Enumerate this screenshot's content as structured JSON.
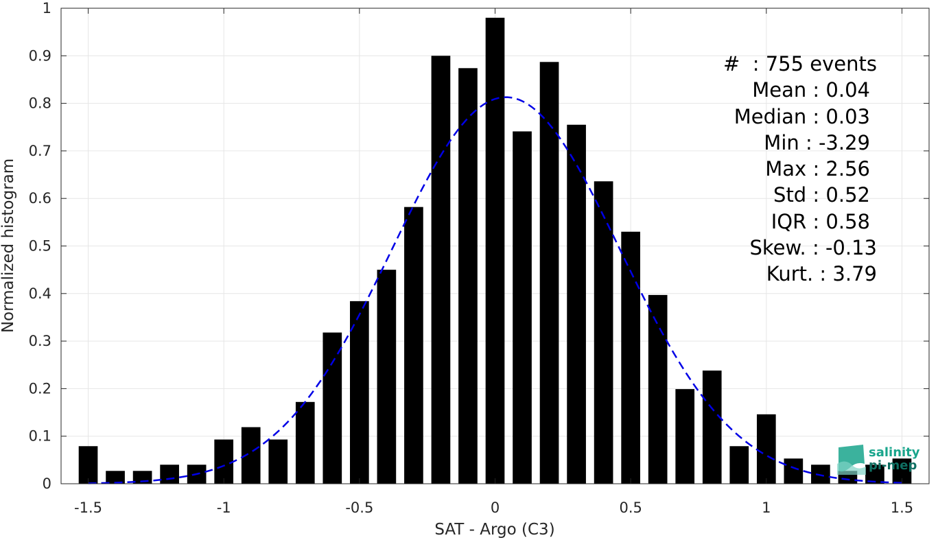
{
  "chart_data": {
    "type": "bar",
    "xlabel": "SAT - Argo (C3)",
    "ylabel": "Normalized histogram",
    "xlim": [
      -1.6,
      1.6
    ],
    "ylim": [
      0,
      1
    ],
    "xticks": [
      -1.5,
      -1,
      -0.5,
      0,
      0.5,
      1,
      1.5
    ],
    "xtick_labels": [
      "-1.5",
      "-1",
      "-0.5",
      "0",
      "0.5",
      "1",
      "1.5"
    ],
    "yticks": [
      0,
      0.1,
      0.2,
      0.3,
      0.4,
      0.5,
      0.6,
      0.7,
      0.8,
      0.9,
      1
    ],
    "ytick_labels": [
      "0",
      "0.1",
      "0.2",
      "0.3",
      "0.4",
      "0.5",
      "0.6",
      "0.7",
      "0.8",
      "0.9",
      "1"
    ],
    "grid": true,
    "bar_color": "#000000",
    "x": [
      -1.5,
      -1.4,
      -1.3,
      -1.2,
      -1.1,
      -1.0,
      -0.9,
      -0.8,
      -0.7,
      -0.6,
      -0.5,
      -0.4,
      -0.3,
      -0.2,
      -0.1,
      0.0,
      0.1,
      0.2,
      0.3,
      0.4,
      0.5,
      0.6,
      0.7,
      0.8,
      0.9,
      1.0,
      1.1,
      1.2,
      1.3,
      1.4,
      1.5
    ],
    "values": [
      0.079,
      0.027,
      0.027,
      0.04,
      0.04,
      0.093,
      0.119,
      0.093,
      0.172,
      0.318,
      0.384,
      0.45,
      0.582,
      0.9,
      0.874,
      0.98,
      0.741,
      0.887,
      0.755,
      0.636,
      0.53,
      0.397,
      0.199,
      0.238,
      0.079,
      0.146,
      0.053,
      0.04,
      0.027,
      0.04,
      0.053
    ],
    "fit_curve": {
      "style": "dashed",
      "color": "#0000e6",
      "mean": 0.04,
      "peak": 0.813,
      "sigma": 0.42
    }
  },
  "stats": [
    "#  : 755 events",
    "Mean : 0.04",
    "Median : 0.03",
    "Min : -3.29",
    "Max : 2.56",
    "Std : 0.52",
    "IQR : 0.58",
    "Skew. : -0.13",
    "Kurt. : 3.79"
  ],
  "logo": {
    "line1": "salinity",
    "line2": "pi-mep",
    "color": "#19a58c"
  }
}
